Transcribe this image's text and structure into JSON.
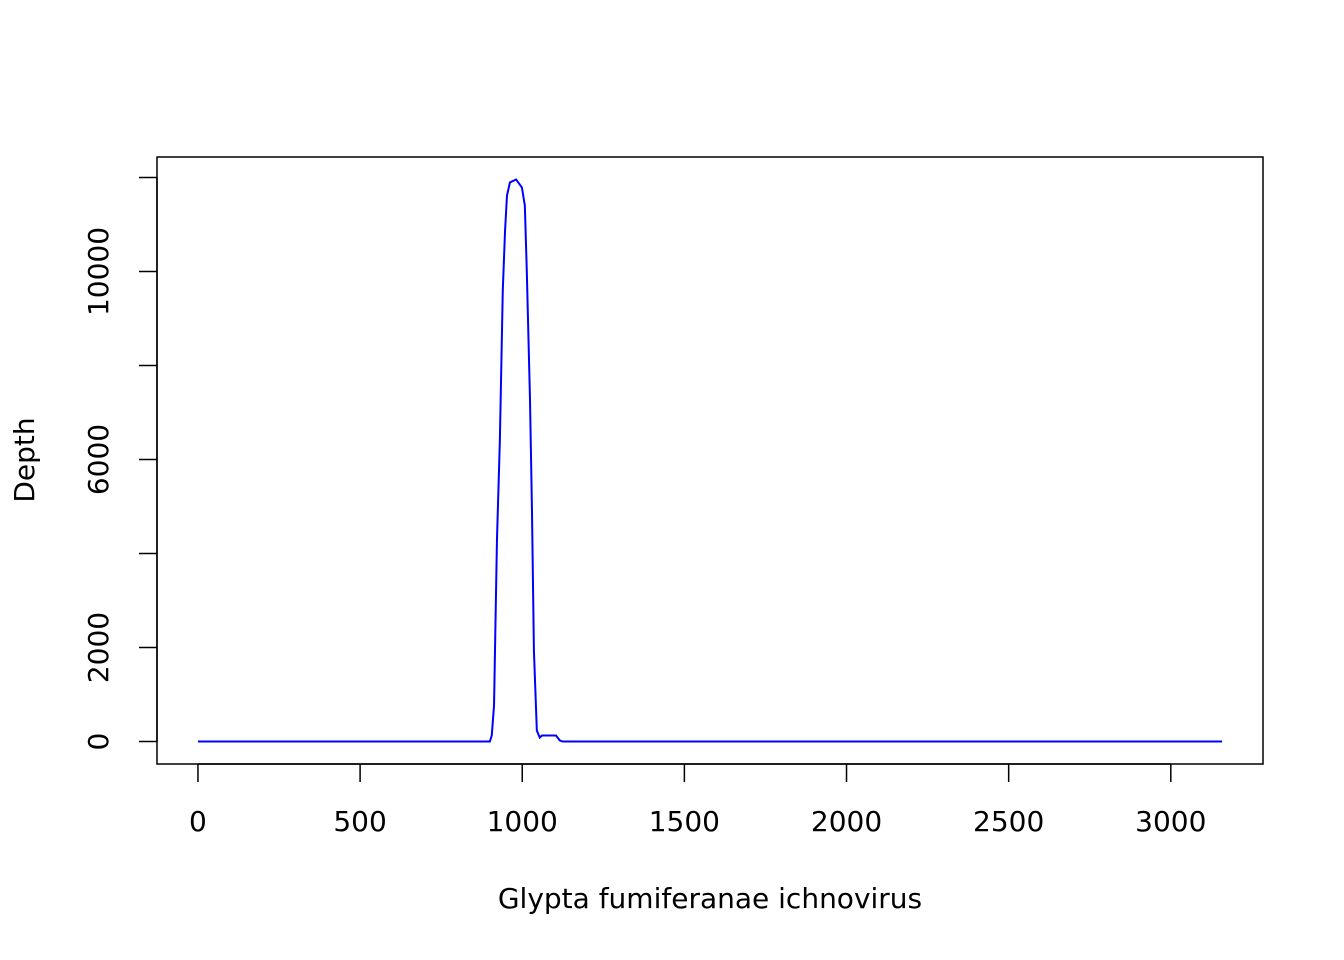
{
  "chart_data": {
    "type": "line",
    "x_label": "Glypta fumiferanae ichnovirus",
    "y_label": "Depth",
    "x": [
      0,
      900,
      906,
      913,
      922,
      931,
      940,
      947,
      953,
      962,
      981,
      999,
      1008,
      1014,
      1024,
      1030,
      1036,
      1045,
      1054,
      1061,
      1104,
      1116,
      1125,
      3158
    ],
    "series": [
      {
        "name": "Depth",
        "color": "#0000ff",
        "values": [
          0,
          0,
          128,
          766,
          4277,
          6404,
          9596,
          10872,
          11617,
          11894,
          11958,
          11787,
          11404,
          10021,
          7255,
          4915,
          1936,
          234,
          85,
          128,
          128,
          21,
          0,
          0
        ]
      }
    ],
    "xlim": [
      -126.3,
      3284.3
    ],
    "ylim": [
      -478,
      12436
    ],
    "xticks": [
      0,
      500,
      1000,
      1500,
      2000,
      2500,
      3000
    ],
    "yticks": [
      0,
      2000,
      {
        "value": 4000
      },
      6000,
      {
        "value": 8000
      },
      10000,
      {
        "value": 12000
      }
    ],
    "grid": false
  }
}
